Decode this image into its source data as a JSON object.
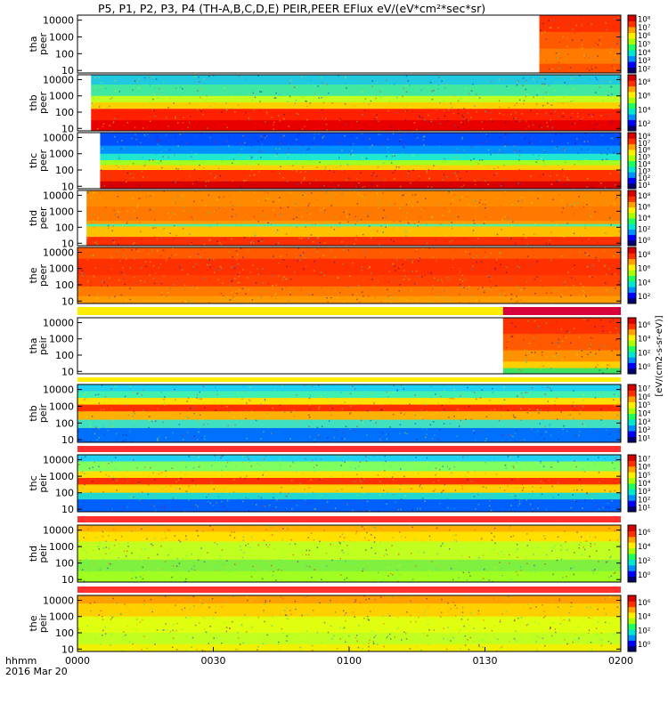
{
  "title": "P5, P1, P2, P3, P4 (TH-A,B,C,D,E) PEIR,PEER EFlux eV/(eV*cm²*sec*sr)",
  "x_axis": {
    "ticks": [
      "0000",
      "0030",
      "0100",
      "0130",
      "0200"
    ],
    "format_label": "hhmm",
    "date_label": "2016 Mar 20"
  },
  "colorbar_unit": "[eV/(cm2-s-sr-eV)]",
  "chart_data": [
    {
      "type": "heatmap",
      "panel": "tha peer",
      "ylabel": [
        "tha",
        "peer"
      ],
      "y_scale": "log",
      "ylim": [
        10,
        10000
      ],
      "yticks": [
        "10",
        "100",
        "1000",
        "10000"
      ],
      "x_range": [
        "0000",
        "0200"
      ],
      "data_start": "0142",
      "cbar_ticks": [
        "10²",
        "10³",
        "10⁴",
        "10⁵",
        "10⁶",
        "10⁷",
        "10⁸"
      ]
    },
    {
      "type": "heatmap",
      "panel": "thb peer",
      "ylabel": [
        "thb",
        "peer"
      ],
      "y_scale": "log",
      "ylim": [
        10,
        10000
      ],
      "yticks": [
        "10",
        "100",
        "1000",
        "10000"
      ],
      "x_range": [
        "0000",
        "0200"
      ],
      "data_start": "0003",
      "cbar_ticks": [
        "10²",
        "10⁴",
        "10⁶",
        "10⁸"
      ]
    },
    {
      "type": "heatmap",
      "panel": "thc peer",
      "ylabel": [
        "thc",
        "peer"
      ],
      "y_scale": "log",
      "ylim": [
        10,
        10000
      ],
      "yticks": [
        "10",
        "100",
        "1000",
        "10000"
      ],
      "x_range": [
        "0000",
        "0200"
      ],
      "data_start": "0005",
      "cbar_ticks": [
        "10¹",
        "10²",
        "10³",
        "10⁴",
        "10⁵",
        "10⁶",
        "10⁷",
        "10⁸"
      ]
    },
    {
      "type": "heatmap",
      "panel": "thd peer",
      "ylabel": [
        "thd",
        "peer"
      ],
      "y_scale": "log",
      "ylim": [
        10,
        10000
      ],
      "yticks": [
        "10",
        "100",
        "1000",
        "10000"
      ],
      "x_range": [
        "0000",
        "0200"
      ],
      "data_start": "0002",
      "cbar_ticks": [
        "10⁰",
        "10²",
        "10⁴",
        "10⁶",
        "10⁸"
      ]
    },
    {
      "type": "heatmap",
      "panel": "the peer",
      "ylabel": [
        "the",
        "peer"
      ],
      "y_scale": "log",
      "ylim": [
        10,
        10000
      ],
      "yticks": [
        "10",
        "100",
        "1000",
        "10000"
      ],
      "x_range": [
        "0000",
        "0200"
      ],
      "data_start": "0000",
      "cbar_ticks": [
        "10²",
        "10⁴",
        "10⁶",
        "10⁸"
      ]
    },
    {
      "type": "heatmap",
      "panel": "tha peir",
      "ylabel": [
        "tha",
        "peir"
      ],
      "y_scale": "log",
      "ylim": [
        10,
        10000
      ],
      "yticks": [
        "10",
        "100",
        "1000",
        "10000"
      ],
      "x_range": [
        "0000",
        "0200"
      ],
      "data_start": "0134",
      "cbar_ticks": [
        "10⁰",
        "10²",
        "10⁴",
        "10⁶"
      ]
    },
    {
      "type": "heatmap",
      "panel": "thb peir",
      "ylabel": [
        "thb",
        "peir"
      ],
      "y_scale": "log",
      "ylim": [
        10,
        10000
      ],
      "yticks": [
        "10",
        "100",
        "1000",
        "10000"
      ],
      "x_range": [
        "0000",
        "0200"
      ],
      "data_start": "0000",
      "cbar_ticks": [
        "10¹",
        "10²",
        "10³",
        "10⁴",
        "10⁵",
        "10⁶",
        "10⁷"
      ]
    },
    {
      "type": "heatmap",
      "panel": "thc peir",
      "ylabel": [
        "thc",
        "peir"
      ],
      "y_scale": "log",
      "ylim": [
        10,
        10000
      ],
      "yticks": [
        "10",
        "100",
        "1000",
        "10000"
      ],
      "x_range": [
        "0000",
        "0200"
      ],
      "data_start": "0000",
      "cbar_ticks": [
        "10¹",
        "10²",
        "10³",
        "10⁴",
        "10⁵",
        "10⁶",
        "10⁷"
      ]
    },
    {
      "type": "heatmap",
      "panel": "thd peir",
      "ylabel": [
        "thd",
        "peir"
      ],
      "y_scale": "log",
      "ylim": [
        10,
        10000
      ],
      "yticks": [
        "10",
        "100",
        "1000",
        "10000"
      ],
      "x_range": [
        "0000",
        "0200"
      ],
      "data_start": "0000",
      "cbar_ticks": [
        "10⁰",
        "10²",
        "10⁴",
        "10⁶"
      ]
    },
    {
      "type": "heatmap",
      "panel": "the peir",
      "ylabel": [
        "the",
        "peir"
      ],
      "y_scale": "log",
      "ylim": [
        10,
        10000
      ],
      "yticks": [
        "10",
        "100",
        "1000",
        "10000"
      ],
      "x_range": [
        "0000",
        "0200"
      ],
      "data_start": "0000",
      "cbar_ticks": [
        "10⁰",
        "10²",
        "10⁴",
        "10⁶"
      ]
    }
  ]
}
